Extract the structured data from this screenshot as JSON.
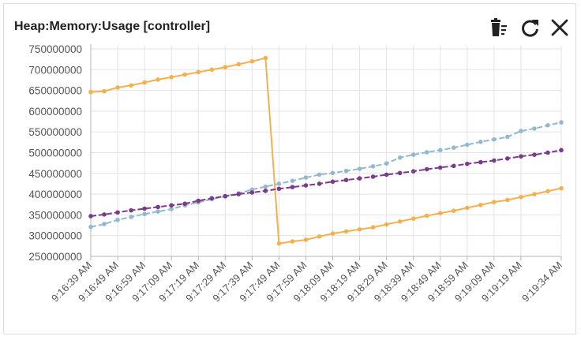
{
  "panel": {
    "title": "Heap:Memory:Usage [controller]",
    "toolbar": {
      "delete_icon": "trash-list-icon",
      "refresh_icon": "refresh-icon",
      "close_icon": "close-icon"
    }
  },
  "chart_data": {
    "type": "line",
    "title": "Heap:Memory:Usage [controller]",
    "xlabel": "",
    "ylabel": "",
    "ylim": [
      250000000,
      750000000
    ],
    "y_ticks": [
      250000000,
      300000000,
      350000000,
      400000000,
      450000000,
      500000000,
      550000000,
      600000000,
      650000000,
      700000000,
      750000000
    ],
    "x": [
      "9:16:39 AM",
      "9:16:44 AM",
      "9:16:49 AM",
      "9:16:54 AM",
      "9:16:59 AM",
      "9:17:04 AM",
      "9:17:09 AM",
      "9:17:14 AM",
      "9:17:19 AM",
      "9:17:24 AM",
      "9:17:29 AM",
      "9:17:34 AM",
      "9:17:39 AM",
      "9:17:44 AM",
      "9:17:49 AM",
      "9:17:54 AM",
      "9:17:59 AM",
      "9:18:04 AM",
      "9:18:09 AM",
      "9:18:14 AM",
      "9:18:19 AM",
      "9:18:24 AM",
      "9:18:29 AM",
      "9:18:34 AM",
      "9:18:39 AM",
      "9:18:44 AM",
      "9:18:49 AM",
      "9:18:54 AM",
      "9:18:59 AM",
      "9:19:04 AM",
      "9:19:09 AM",
      "9:19:14 AM",
      "9:19:19 AM",
      "9:19:24 AM",
      "9:19:29 AM",
      "9:19:34 AM"
    ],
    "x_tick_labels": [
      "9:16:39 AM",
      "9:16:49 AM",
      "9:16:59 AM",
      "9:17:09 AM",
      "9:17:19 AM",
      "9:17:29 AM",
      "9:17:39 AM",
      "9:17:49 AM",
      "9:17:59 AM",
      "9:18:09 AM",
      "9:18:19 AM",
      "9:18:29 AM",
      "9:18:39 AM",
      "9:18:49 AM",
      "9:18:59 AM",
      "9:19:09 AM",
      "9:19:19 AM",
      "9:19:34 AM"
    ],
    "grid": true,
    "series": [
      {
        "color": "#f4b04f",
        "dash": false,
        "values": [
          646000000,
          648000000,
          657000000,
          662000000,
          669000000,
          676000000,
          682000000,
          688000000,
          694000000,
          700000000,
          706000000,
          713000000,
          720000000,
          728000000,
          281000000,
          286000000,
          290000000,
          298000000,
          305000000,
          310000000,
          315000000,
          320000000,
          327000000,
          334000000,
          341000000,
          348000000,
          354000000,
          360000000,
          367000000,
          374000000,
          381000000,
          386000000,
          393000000,
          400000000,
          407000000,
          414000000
        ]
      },
      {
        "color": "#93b9cf",
        "dash": true,
        "values": [
          321000000,
          328000000,
          338000000,
          345000000,
          352000000,
          358000000,
          364000000,
          373000000,
          380000000,
          388000000,
          395000000,
          402000000,
          411000000,
          418000000,
          425000000,
          432000000,
          440000000,
          447000000,
          451000000,
          456000000,
          461000000,
          467000000,
          474000000,
          488000000,
          495000000,
          501000000,
          506000000,
          512000000,
          519000000,
          526000000,
          532000000,
          538000000,
          552000000,
          558000000,
          566000000,
          573000000
        ]
      },
      {
        "color": "#7b3a8c",
        "dash": true,
        "values": [
          347000000,
          351000000,
          356000000,
          361000000,
          365000000,
          369000000,
          373000000,
          377000000,
          384000000,
          390000000,
          395000000,
          400000000,
          404000000,
          408000000,
          413000000,
          417000000,
          421000000,
          425000000,
          430000000,
          434000000,
          438000000,
          442000000,
          447000000,
          451000000,
          455000000,
          460000000,
          464000000,
          468000000,
          473000000,
          477000000,
          481000000,
          486000000,
          491000000,
          495000000,
          500000000,
          506000000
        ]
      }
    ]
  }
}
